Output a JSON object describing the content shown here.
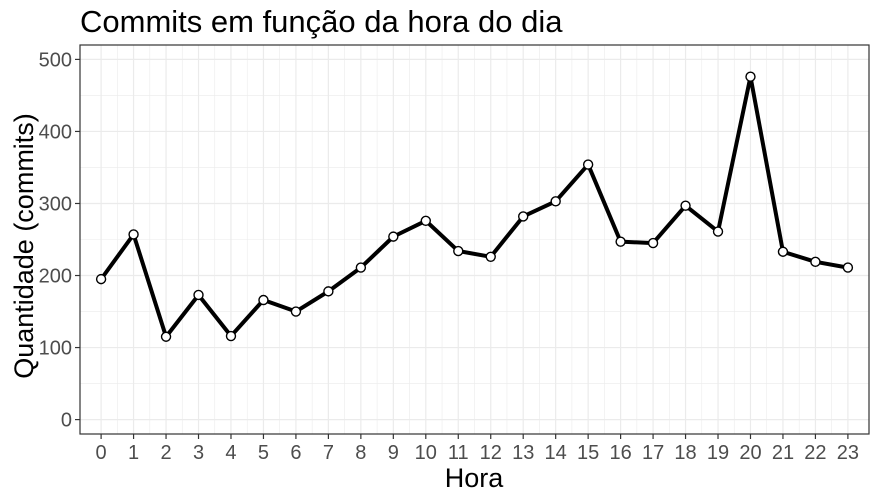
{
  "chart_data": {
    "type": "line",
    "title": "Commits em função da hora do dia",
    "xlabel": "Hora",
    "ylabel": "Quantidade (commits)",
    "x": [
      0,
      1,
      2,
      3,
      4,
      5,
      6,
      7,
      8,
      9,
      10,
      11,
      12,
      13,
      14,
      15,
      16,
      17,
      18,
      19,
      20,
      21,
      22,
      23
    ],
    "x_tick_labels": [
      "0",
      "1",
      "2",
      "3",
      "4",
      "5",
      "6",
      "7",
      "8",
      "9",
      "10",
      "11",
      "12",
      "13",
      "14",
      "15",
      "16",
      "17",
      "18",
      "19",
      "20",
      "21",
      "22",
      "23"
    ],
    "y": [
      195,
      257,
      115,
      173,
      116,
      166,
      150,
      178,
      211,
      254,
      276,
      234,
      226,
      282,
      303,
      354,
      247,
      245,
      297,
      261,
      476,
      233,
      219,
      211
    ],
    "y_ticks": [
      0,
      100,
      200,
      300,
      400,
      500
    ],
    "y_tick_labels": [
      "0",
      "100",
      "200",
      "300",
      "400",
      "500"
    ],
    "xlim": [
      -0.65,
      23.65
    ],
    "ylim": [
      -20,
      520
    ],
    "grid": true,
    "legend": "none",
    "colors": {
      "line": "#000000",
      "grid": "#ebebeb",
      "panel_border": "#333333",
      "tick_text": "#4d4d4d"
    }
  }
}
